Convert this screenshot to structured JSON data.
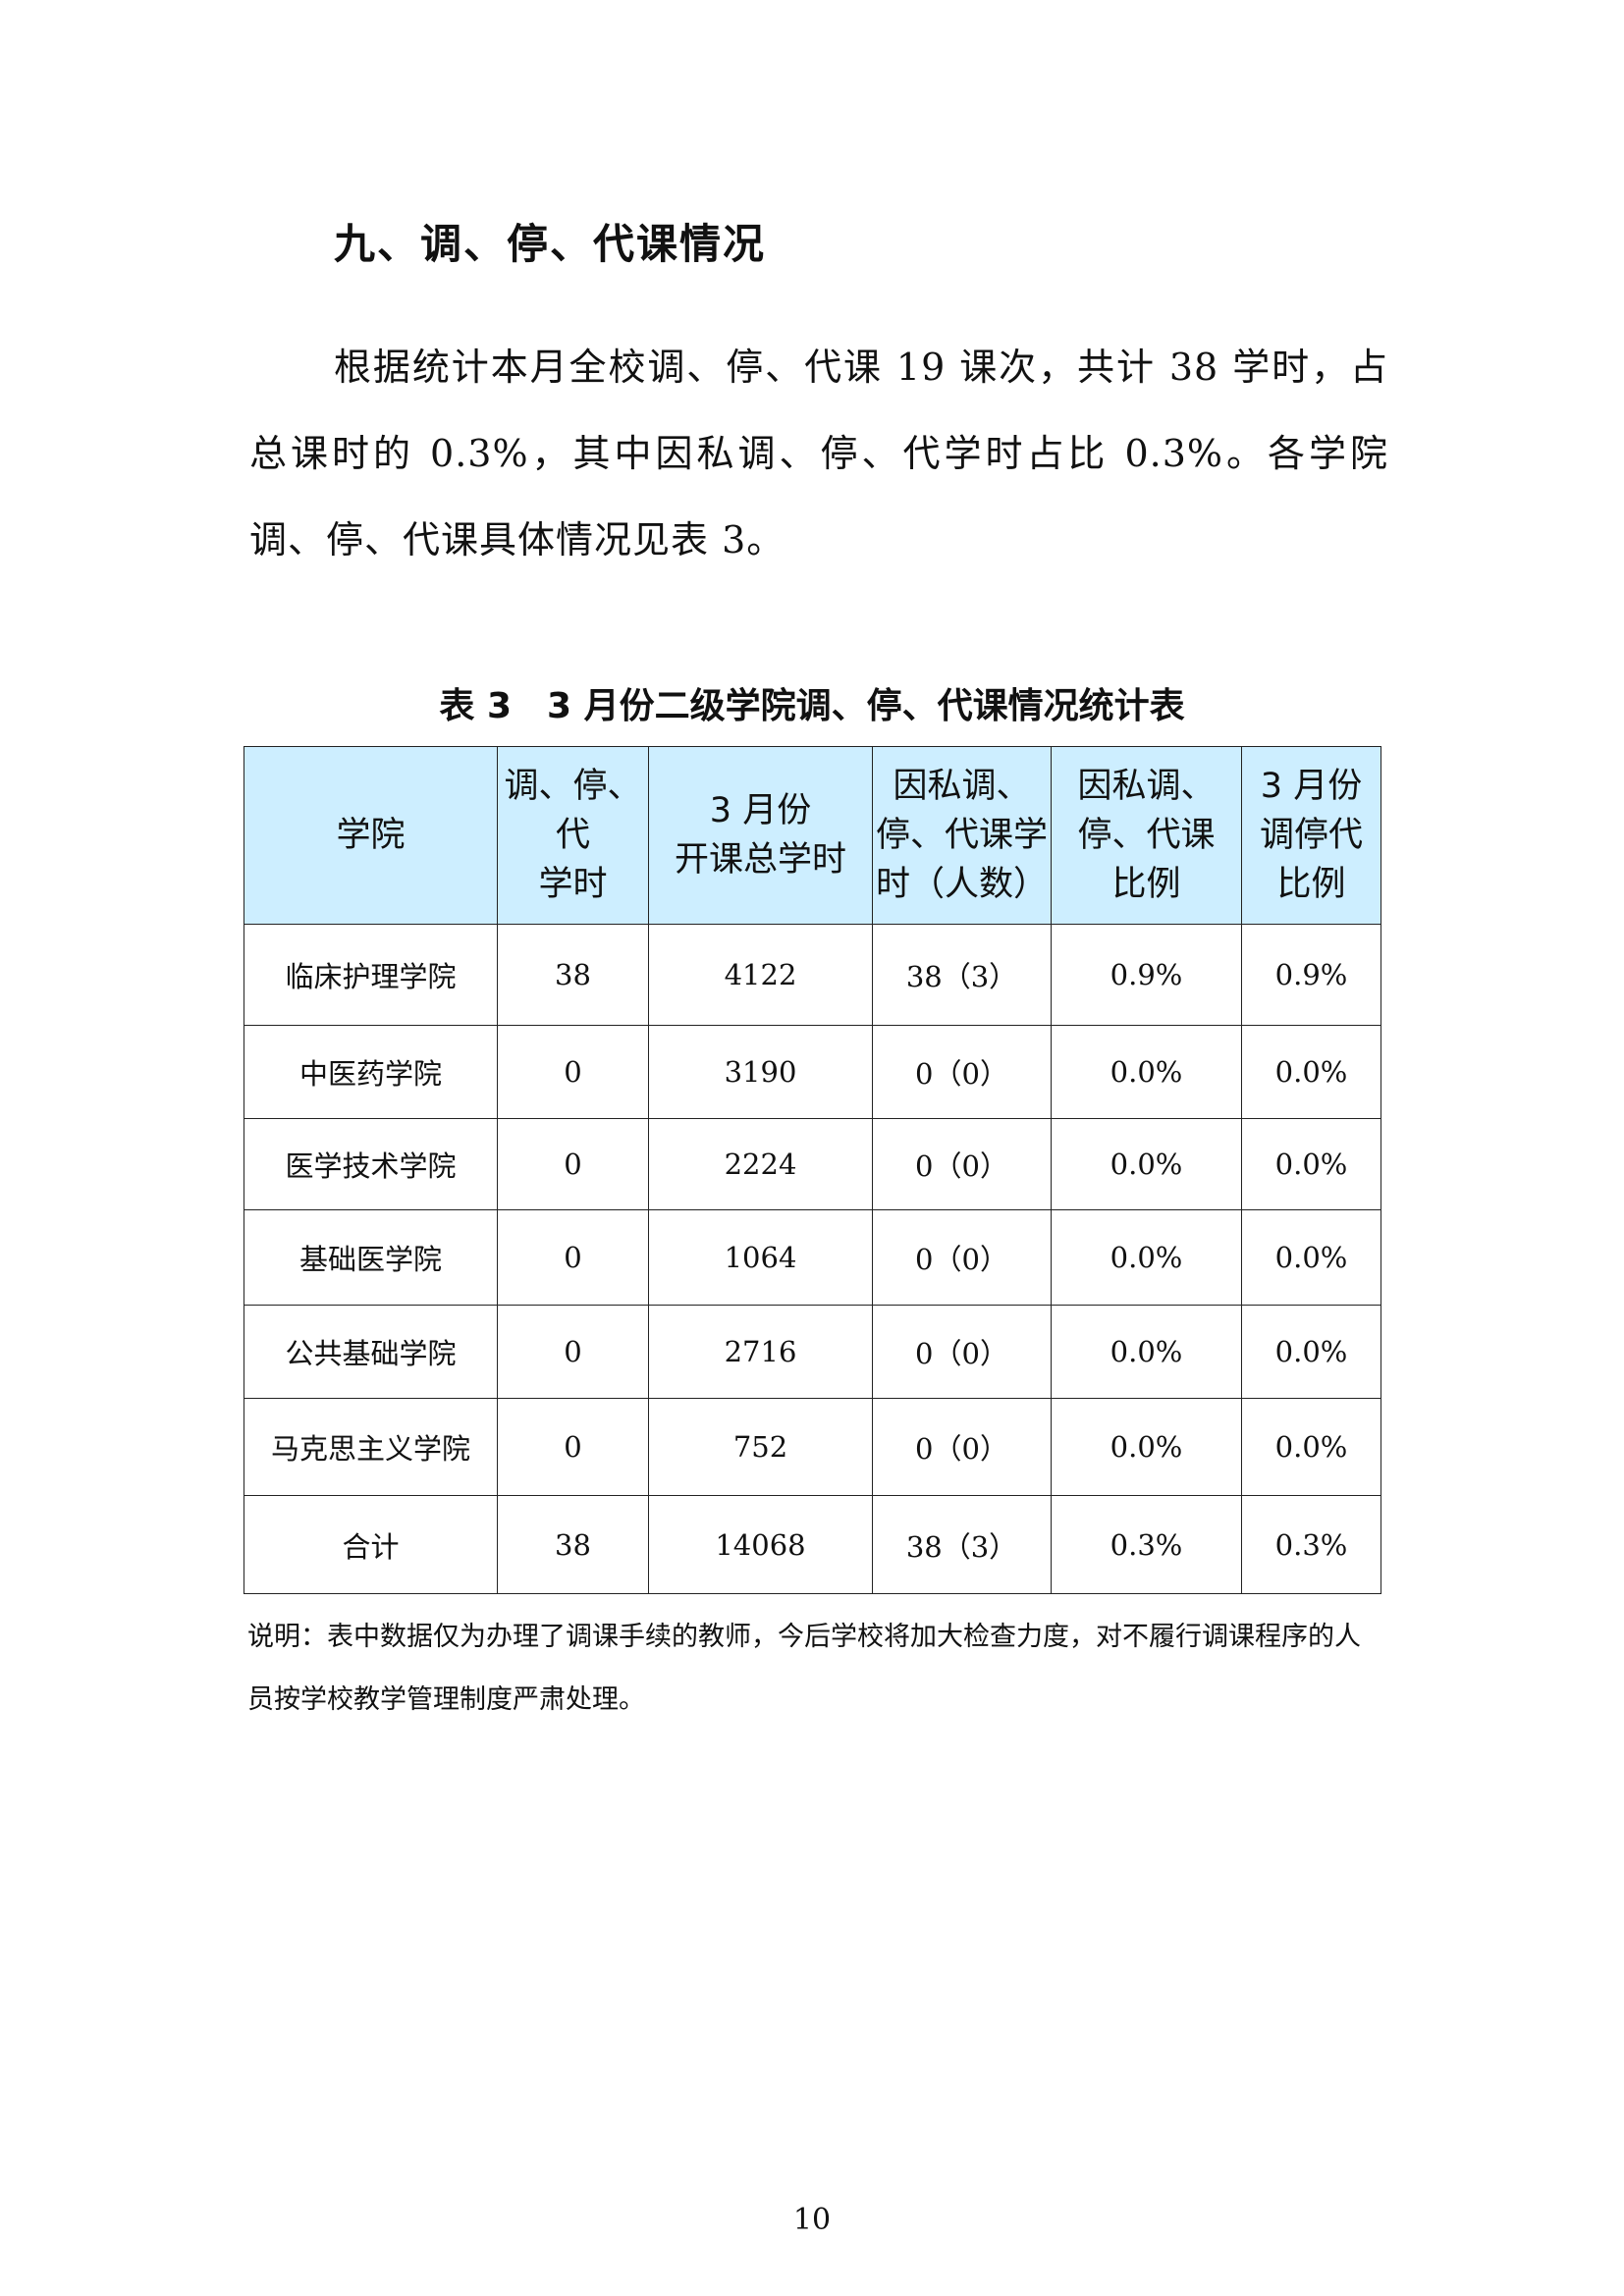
{
  "heading": "九、调、停、代课情况",
  "paragraph": "根据统计本月全校调、停、代课 19 课次，共计 38 学时，占总课时的 0.3%，其中因私调、停、代学时占比 0.3%。各学院调、停、代课具体情况见表 3。",
  "table_caption": "表 3　3 月份二级学院调、停、代课情况统计表",
  "table": {
    "header_bg": "#cdeeff",
    "columns": [
      "学院",
      "调、停、\n代\n学时",
      "3 月份\n开课总学时",
      "因私调、\n停、代课学\n时（人数）",
      "因私调、\n停、代课\n比例",
      "3 月份\n调停代\n比例"
    ],
    "rows": [
      [
        "临床护理学院",
        "38",
        "4122",
        "38（3）",
        "0.9%",
        "0.9%"
      ],
      [
        "中医药学院",
        "0",
        "3190",
        "0（0）",
        "0.0%",
        "0.0%"
      ],
      [
        "医学技术学院",
        "0",
        "2224",
        "0（0）",
        "0.0%",
        "0.0%"
      ],
      [
        "基础医学院",
        "0",
        "1064",
        "0（0）",
        "0.0%",
        "0.0%"
      ],
      [
        "公共基础学院",
        "0",
        "2716",
        "0（0）",
        "0.0%",
        "0.0%"
      ],
      [
        "马克思主义学院",
        "0",
        "752",
        "0（0）",
        "0.0%",
        "0.0%"
      ],
      [
        "合计",
        "38",
        "14068",
        "38（3）",
        "0.3%",
        "0.3%"
      ]
    ]
  },
  "note": "说明：表中数据仅为办理了调课手续的教师，今后学校将加大检查力度，对不履行调课程序的人员按学校教学管理制度严肃处理。",
  "page_number": "10"
}
